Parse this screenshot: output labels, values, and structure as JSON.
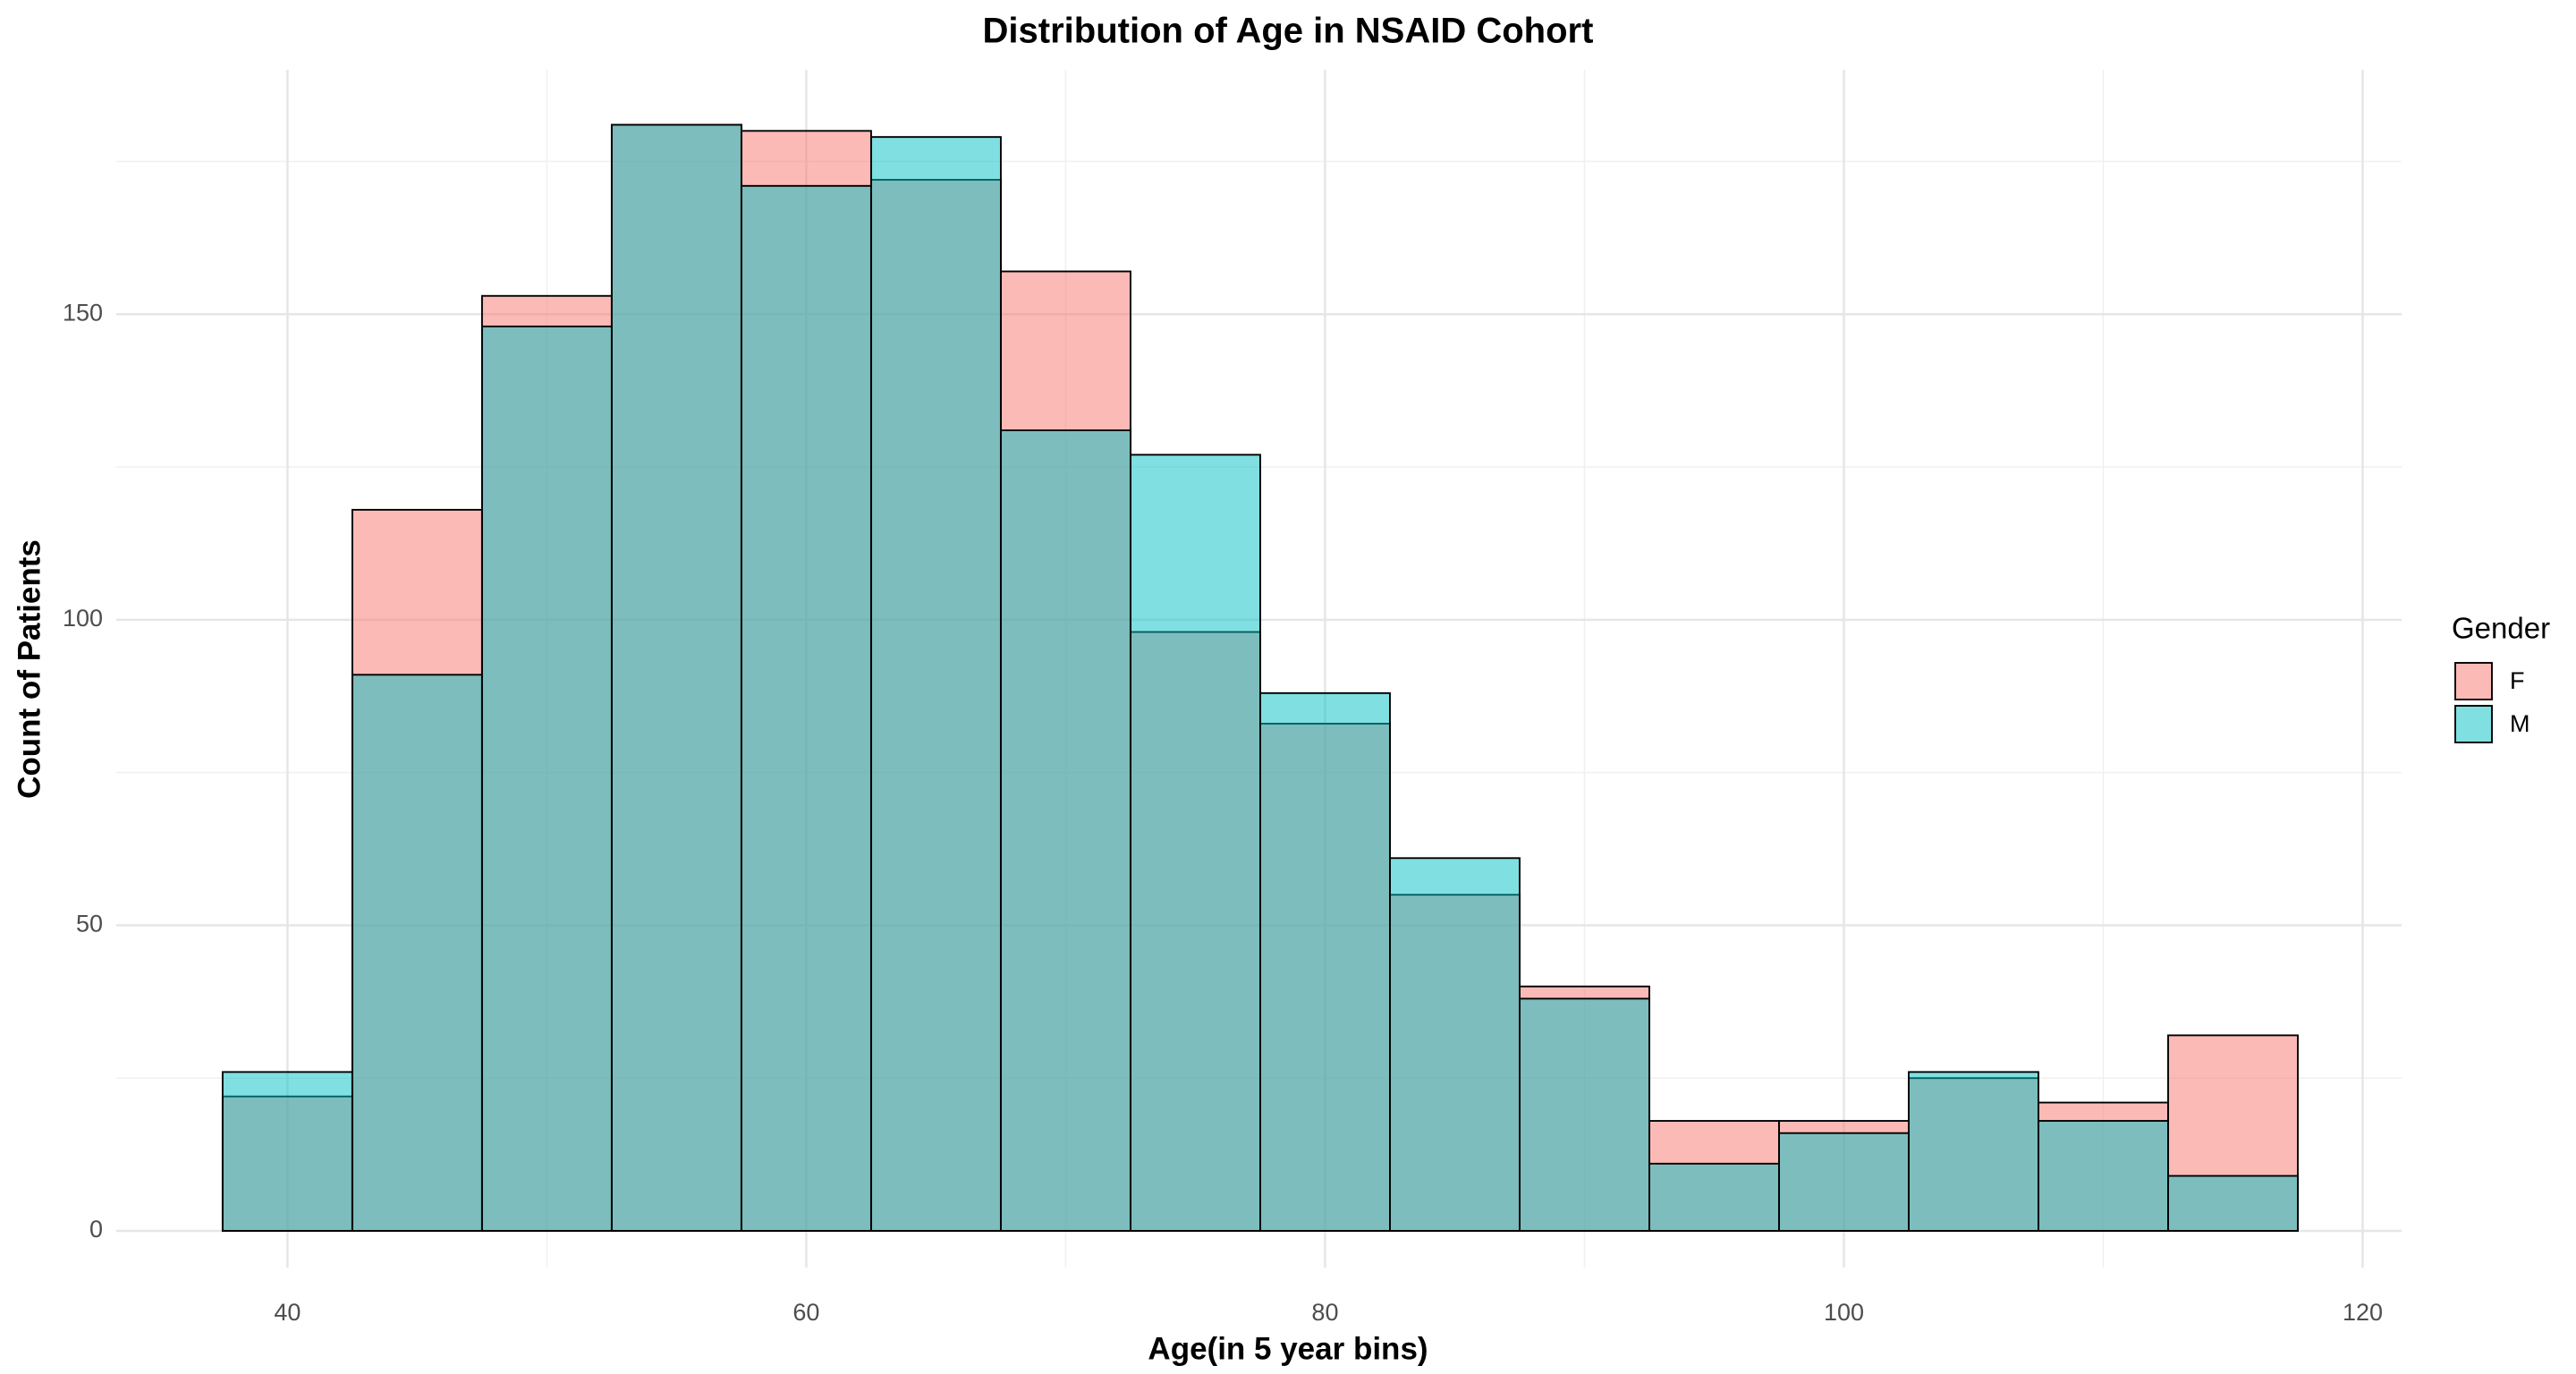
{
  "chart_data": {
    "type": "histogram",
    "title": "Distribution of Age in NSAID Cohort",
    "x_label": "Age(in 5 year bins)",
    "y_label": "Count of Patients",
    "legend_title": "Gender",
    "legend_position": "right",
    "bins": [
      37.5,
      42.5,
      47.5,
      52.5,
      57.5,
      62.5,
      67.5,
      72.5,
      77.5,
      82.5,
      87.5,
      92.5,
      97.5,
      102.5,
      107.5,
      112.5,
      117.5
    ],
    "series": [
      {
        "name": "F",
        "color": "#F8766D",
        "values": [
          22,
          118,
          153,
          181,
          180,
          172,
          157,
          98,
          83,
          55,
          40,
          18,
          18,
          25,
          21,
          32
        ]
      },
      {
        "name": "M",
        "color": "#00BFC4",
        "values": [
          26,
          91,
          148,
          181,
          171,
          179,
          131,
          127,
          88,
          61,
          38,
          11,
          16,
          26,
          18,
          9
        ]
      }
    ],
    "opacity": 0.5,
    "xlim": [
      33.4,
      121.5
    ],
    "ylim": [
      -6,
      190
    ],
    "xticks": [
      40,
      60,
      80,
      100,
      120
    ],
    "yticks": [
      0,
      50,
      100,
      150
    ],
    "x_minor_ticks": [
      50,
      70,
      90,
      110
    ],
    "y_minor_ticks": [
      25,
      75,
      125,
      175
    ],
    "grid": true
  }
}
